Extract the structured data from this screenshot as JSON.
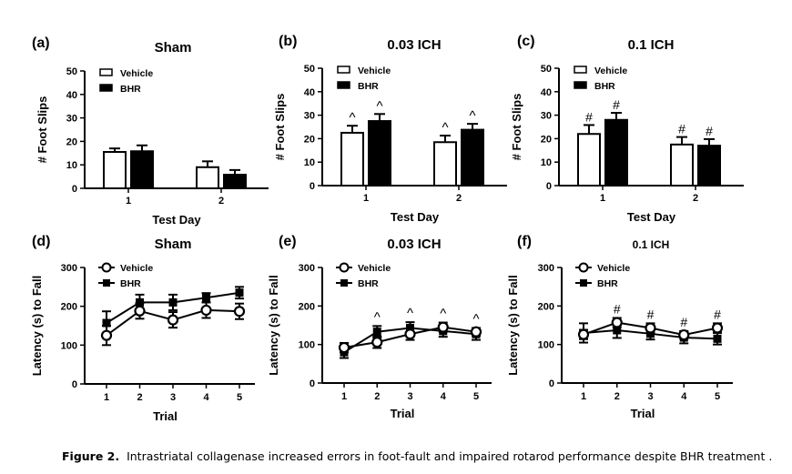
{
  "colors": {
    "vehicle": "#ffffff",
    "bhr": "#000000",
    "stroke": "#000000"
  },
  "chart_data": [
    {
      "id": "a",
      "panel_label": "(a)",
      "type": "bar",
      "title": "Sham",
      "ylabel": "# Foot Slips",
      "xlabel": "Test Day",
      "categories": [
        "1",
        "2"
      ],
      "ylim": [
        0,
        50
      ],
      "yticks": [
        0,
        10,
        20,
        30,
        40,
        50
      ],
      "legend": [
        "Vehicle",
        "BHR"
      ],
      "legend_position": "top-left",
      "series": [
        {
          "name": "Vehicle",
          "values": [
            15.5,
            9.0
          ],
          "errors": [
            1.5,
            2.5
          ]
        },
        {
          "name": "BHR",
          "values": [
            15.8,
            5.8
          ],
          "errors": [
            2.5,
            2.0
          ]
        }
      ],
      "annotations": [
        [
          "",
          ""
        ],
        [
          "",
          ""
        ]
      ]
    },
    {
      "id": "b",
      "panel_label": "(b)",
      "type": "bar",
      "title": "0.03 ICH",
      "ylabel": "# Foot Slips",
      "xlabel": "Test Day",
      "categories": [
        "1",
        "2"
      ],
      "ylim": [
        0,
        50
      ],
      "yticks": [
        0,
        10,
        20,
        30,
        40,
        50
      ],
      "legend": [
        "Vehicle",
        "BHR"
      ],
      "legend_position": "top-left",
      "series": [
        {
          "name": "Vehicle",
          "values": [
            22.5,
            18.5
          ],
          "errors": [
            3.0,
            2.8
          ]
        },
        {
          "name": "BHR",
          "values": [
            27.5,
            23.8
          ],
          "errors": [
            3.0,
            2.5
          ]
        }
      ],
      "annotations": [
        [
          "^",
          "^"
        ],
        [
          "^",
          "^"
        ]
      ]
    },
    {
      "id": "c",
      "panel_label": "(c)",
      "type": "bar",
      "title": "0.1 ICH",
      "ylabel": "# Foot Slips",
      "xlabel": "Test Day",
      "categories": [
        "1",
        "2"
      ],
      "ylim": [
        0,
        50
      ],
      "yticks": [
        0,
        10,
        20,
        30,
        40,
        50
      ],
      "legend": [
        "Vehicle",
        "BHR"
      ],
      "legend_position": "top-left",
      "series": [
        {
          "name": "Vehicle",
          "values": [
            22.0,
            17.5
          ],
          "errors": [
            3.8,
            3.2
          ]
        },
        {
          "name": "BHR",
          "values": [
            28.0,
            17.0
          ],
          "errors": [
            3.0,
            2.8
          ]
        }
      ],
      "annotations": [
        [
          "#",
          "#"
        ],
        [
          "#",
          "#"
        ]
      ]
    },
    {
      "id": "d",
      "panel_label": "(d)",
      "type": "line",
      "title": "Sham",
      "ylabel": "Latency (s) to Fall",
      "xlabel": "Trial",
      "x": [
        1,
        2,
        3,
        4,
        5
      ],
      "ylim": [
        0,
        300
      ],
      "yticks": [
        0,
        100,
        200,
        300
      ],
      "legend": [
        "Vehicle",
        "BHR"
      ],
      "legend_position": "top-left",
      "series": [
        {
          "name": "Vehicle",
          "marker": "open-circle",
          "values": [
            125,
            188,
            165,
            190,
            187
          ],
          "errors": [
            25,
            20,
            20,
            20,
            20
          ]
        },
        {
          "name": "BHR",
          "marker": "filled-square",
          "values": [
            157,
            210,
            210,
            222,
            235
          ],
          "errors": [
            30,
            20,
            20,
            12,
            15
          ]
        }
      ],
      "annotations": [
        "",
        "",
        "",
        "",
        ""
      ]
    },
    {
      "id": "e",
      "panel_label": "(e)",
      "type": "line",
      "title": "0.03 ICH",
      "ylabel": "Latency (s) to Fall",
      "xlabel": "Trial",
      "x": [
        1,
        2,
        3,
        4,
        5
      ],
      "ylim": [
        0,
        300
      ],
      "yticks": [
        0,
        100,
        200,
        300
      ],
      "legend": [
        "Vehicle",
        "BHR"
      ],
      "legend_position": "top-left",
      "series": [
        {
          "name": "Vehicle",
          "marker": "open-circle",
          "values": [
            92,
            106,
            127,
            145,
            133
          ],
          "errors": [
            12,
            15,
            15,
            12,
            10
          ]
        },
        {
          "name": "BHR",
          "marker": "filled-square",
          "values": [
            80,
            133,
            143,
            135,
            127
          ],
          "errors": [
            15,
            15,
            15,
            15,
            15
          ]
        }
      ],
      "annotations": [
        "",
        "^",
        "^",
        "^",
        "^"
      ]
    },
    {
      "id": "f",
      "panel_label": "(f)",
      "type": "line",
      "title": "0.1 ICH",
      "ylabel": "Latency (s) to Fall",
      "xlabel": "Trial",
      "x": [
        1,
        2,
        3,
        4,
        5
      ],
      "ylim": [
        0,
        300
      ],
      "yticks": [
        0,
        100,
        200,
        300
      ],
      "legend": [
        "Vehicle",
        "BHR"
      ],
      "legend_position": "top-left",
      "series": [
        {
          "name": "Vehicle",
          "marker": "open-circle",
          "values": [
            126,
            157,
            143,
            125,
            143
          ],
          "errors": [
            12,
            12,
            12,
            10,
            12
          ]
        },
        {
          "name": "BHR",
          "marker": "filled-square",
          "values": [
            130,
            137,
            128,
            118,
            115
          ],
          "errors": [
            25,
            20,
            15,
            15,
            15
          ]
        }
      ],
      "annotations": [
        "",
        "#",
        "#",
        "#",
        "#"
      ]
    }
  ],
  "caption": {
    "label": "Figure 2.",
    "text": "Intrastriatal collagenase increased errors in foot-fault and impaired rotarod performance despite BHR treatment ."
  }
}
